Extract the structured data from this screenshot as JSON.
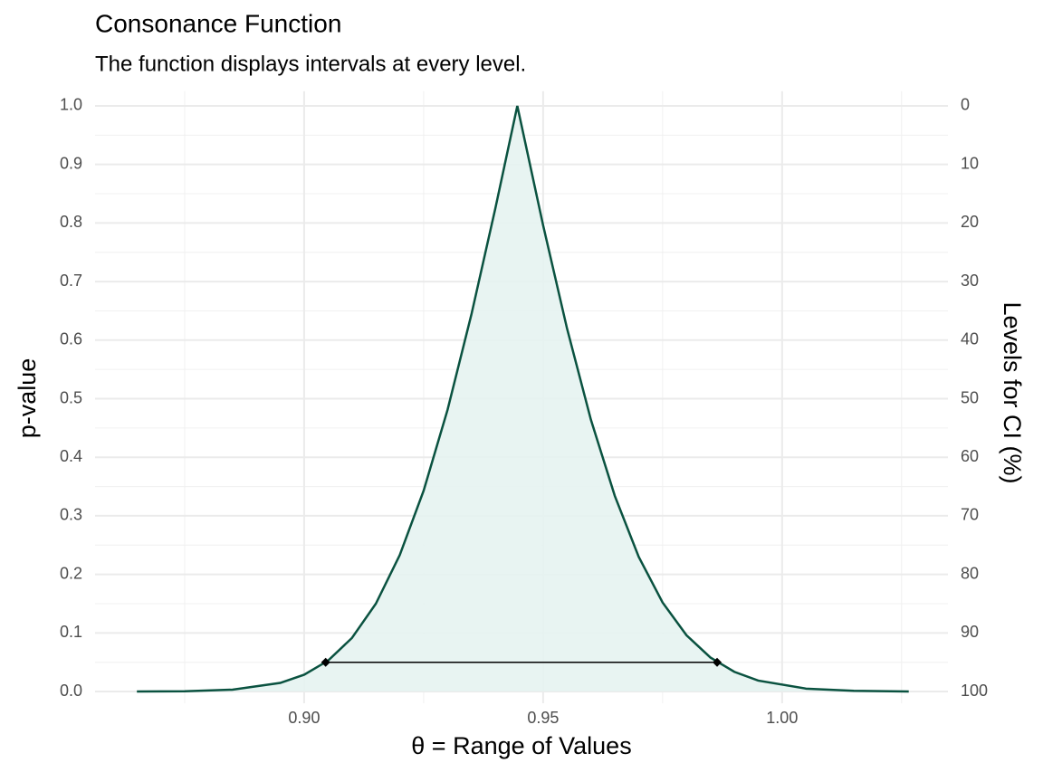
{
  "chart_data": {
    "type": "line",
    "title": "Consonance Function",
    "subtitle": "The function displays intervals at every level.",
    "x_label": "θ =  Range of Values",
    "y_label": "p-value",
    "y2_label": "Levels for CI (%)",
    "x": [
      0.865,
      0.875,
      0.885,
      0.895,
      0.9,
      0.905,
      0.91,
      0.915,
      0.92,
      0.925,
      0.93,
      0.935,
      0.94,
      0.9446,
      0.95,
      0.955,
      0.96,
      0.965,
      0.97,
      0.975,
      0.98,
      0.985,
      0.99,
      0.995,
      1.005,
      1.015,
      1.0265
    ],
    "series": [
      {
        "name": "p-value",
        "color": "#0a5240",
        "fill": "#e6f3f1",
        "values": [
          0.0001,
          0.00054,
          0.0032,
          0.0147,
          0.0287,
          0.0528,
          0.0915,
          0.15,
          0.233,
          0.343,
          0.481,
          0.644,
          0.825,
          1,
          0.796,
          0.62,
          0.464,
          0.334,
          0.23,
          0.152,
          0.0961,
          0.0581,
          0.0337,
          0.0187,
          0.005,
          0.00115,
          0.00017
        ]
      }
    ],
    "interval": {
      "lower": 0.9045,
      "upper": 0.9864,
      "p": 0.05,
      "color": "#000000"
    },
    "xlim": [
      0.85625,
      1.0347
    ],
    "ylim": [
      -0.02,
      1.025
    ],
    "y2lim": [
      102,
      -2.5
    ],
    "xticks": [
      {
        "value": 0.9,
        "label": "0.90"
      },
      {
        "value": 0.95,
        "label": "0.95"
      },
      {
        "value": 1,
        "label": "1.00"
      }
    ],
    "x_minor_ticks": [
      0.875,
      0.925,
      0.975,
      1.025
    ],
    "yticks": [
      {
        "value": 0,
        "label": "0.0"
      },
      0.1,
      0.2,
      0.3,
      0.4,
      0.5,
      0.6,
      0.7,
      0.8,
      0.9,
      {
        "value": 1,
        "label": "1.0"
      }
    ],
    "y_minor_ticks": [
      0.05,
      0.15,
      0.25,
      0.35,
      0.45,
      0.55,
      0.65,
      0.75,
      0.85,
      0.95
    ],
    "y2ticks": [
      0,
      10,
      20,
      30,
      40,
      50,
      60,
      70,
      80,
      90,
      100
    ],
    "grid": true
  }
}
